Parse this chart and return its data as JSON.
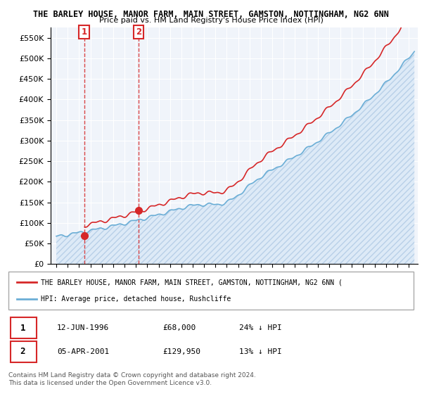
{
  "title1": "THE BARLEY HOUSE, MANOR FARM, MAIN STREET, GAMSTON, NOTTINGHAM, NG2 6NN",
  "title2": "Price paid vs. HM Land Registry's House Price Index (HPI)",
  "ylim": [
    0,
    575000
  ],
  "yticks": [
    0,
    50000,
    100000,
    150000,
    200000,
    250000,
    300000,
    350000,
    400000,
    450000,
    500000,
    550000
  ],
  "ylabels": [
    "£0",
    "£50K",
    "£100K",
    "£150K",
    "£200K",
    "£250K",
    "£300K",
    "£350K",
    "£400K",
    "£450K",
    "£500K",
    "£550K"
  ],
  "sale1_date_num": 1996.44,
  "sale1_price": 68000,
  "sale1_label": "1",
  "sale2_date_num": 2001.26,
  "sale2_price": 129950,
  "sale2_label": "2",
  "hpi_color": "#6baed6",
  "price_color": "#d62728",
  "legend_entry1": "THE BARLEY HOUSE, MANOR FARM, MAIN STREET, GAMSTON, NOTTINGHAM, NG2 6NN (",
  "legend_entry2": "HPI: Average price, detached house, Rushcliffe",
  "table_row1": [
    "1",
    "12-JUN-1996",
    "£68,000",
    "24% ↓ HPI"
  ],
  "table_row2": [
    "2",
    "05-APR-2001",
    "£129,950",
    "13% ↓ HPI"
  ],
  "footer": "Contains HM Land Registry data © Crown copyright and database right 2024.\nThis data is licensed under the Open Government Licence v3.0."
}
